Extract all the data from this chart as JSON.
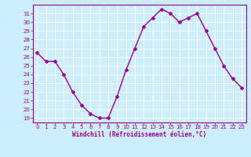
{
  "x": [
    0,
    1,
    2,
    3,
    4,
    5,
    6,
    7,
    8,
    9,
    10,
    11,
    12,
    13,
    14,
    15,
    16,
    17,
    18,
    19,
    20,
    21,
    22,
    23
  ],
  "y": [
    26.5,
    25.5,
    25.5,
    24.0,
    22.0,
    20.5,
    19.5,
    19.0,
    19.0,
    21.5,
    24.5,
    27.0,
    29.5,
    30.5,
    31.5,
    31.0,
    30.0,
    30.5,
    31.0,
    29.0,
    27.0,
    25.0,
    23.5,
    22.5
  ],
  "line_color": "#990099",
  "marker": "D",
  "markersize": 2.0,
  "linewidth": 1.0,
  "background_color": "#cceeff",
  "grid_color": "#ffffff",
  "xlabel": "Windchill (Refroidissement éolien,°C)",
  "xlabel_color": "#990099",
  "tick_color": "#990099",
  "spine_color": "#990099",
  "ylim": [
    18.5,
    32.0
  ],
  "xlim": [
    -0.5,
    23.5
  ],
  "yticks": [
    19,
    20,
    21,
    22,
    23,
    24,
    25,
    26,
    27,
    28,
    29,
    30,
    31
  ],
  "xticks": [
    0,
    1,
    2,
    3,
    4,
    5,
    6,
    7,
    8,
    9,
    10,
    11,
    12,
    13,
    14,
    15,
    16,
    17,
    18,
    19,
    20,
    21,
    22,
    23
  ],
  "tick_fontsize": 5.0,
  "xlabel_fontsize": 5.5
}
